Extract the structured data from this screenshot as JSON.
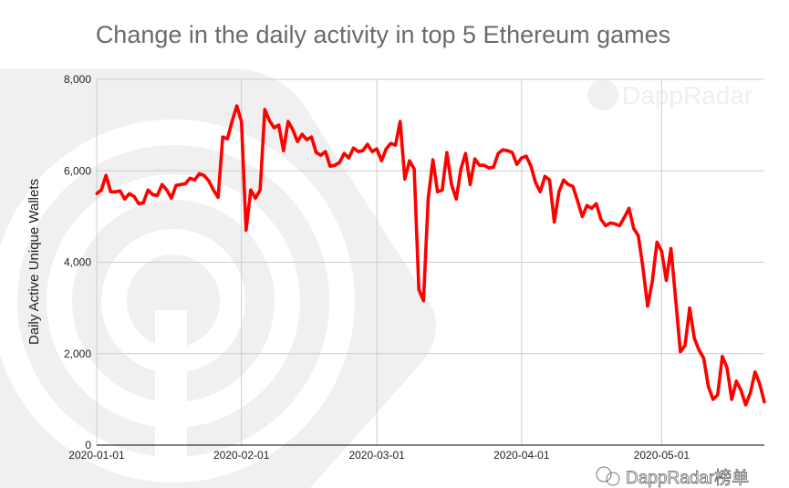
{
  "chart_data": {
    "type": "line",
    "title": "Change in the daily activity in top 5 Ethereum games",
    "xlabel": "",
    "ylabel": "Daily Active Unique Wallets",
    "ylim": [
      0,
      8000
    ],
    "yticks": [
      0,
      2000,
      4000,
      6000,
      8000
    ],
    "ytick_labels": [
      "0",
      "2,000",
      "4,000",
      "6,000",
      "8,000"
    ],
    "xticks": [
      "2020-01-01",
      "2020-02-01",
      "2020-03-01",
      "2020-04-01",
      "2020-05-01"
    ],
    "xlim": [
      "2020-01-01",
      "2020-05-23"
    ],
    "grid": true,
    "legend": "none",
    "line_color": "#ff0000",
    "x": [
      "2020-01-01",
      "2020-01-02",
      "2020-01-03",
      "2020-01-04",
      "2020-01-05",
      "2020-01-06",
      "2020-01-07",
      "2020-01-08",
      "2020-01-09",
      "2020-01-10",
      "2020-01-11",
      "2020-01-12",
      "2020-01-13",
      "2020-01-14",
      "2020-01-15",
      "2020-01-16",
      "2020-01-17",
      "2020-01-18",
      "2020-01-19",
      "2020-01-20",
      "2020-01-21",
      "2020-01-22",
      "2020-01-23",
      "2020-01-24",
      "2020-01-25",
      "2020-01-26",
      "2020-01-27",
      "2020-01-28",
      "2020-01-29",
      "2020-01-30",
      "2020-01-31",
      "2020-02-01",
      "2020-02-02",
      "2020-02-03",
      "2020-02-04",
      "2020-02-05",
      "2020-02-06",
      "2020-02-07",
      "2020-02-08",
      "2020-02-09",
      "2020-02-10",
      "2020-02-11",
      "2020-02-12",
      "2020-02-13",
      "2020-02-14",
      "2020-02-15",
      "2020-02-16",
      "2020-02-17",
      "2020-02-18",
      "2020-02-19",
      "2020-02-20",
      "2020-02-21",
      "2020-02-22",
      "2020-02-23",
      "2020-02-24",
      "2020-02-25",
      "2020-02-26",
      "2020-02-27",
      "2020-02-28",
      "2020-02-29",
      "2020-03-01",
      "2020-03-02",
      "2020-03-03",
      "2020-03-04",
      "2020-03-05",
      "2020-03-06",
      "2020-03-07",
      "2020-03-08",
      "2020-03-09",
      "2020-03-10",
      "2020-03-11",
      "2020-03-12",
      "2020-03-13",
      "2020-03-14",
      "2020-03-15",
      "2020-03-16",
      "2020-03-17",
      "2020-03-18",
      "2020-03-19",
      "2020-03-20",
      "2020-03-21",
      "2020-03-22",
      "2020-03-23",
      "2020-03-24",
      "2020-03-25",
      "2020-03-26",
      "2020-03-27",
      "2020-03-28",
      "2020-03-29",
      "2020-03-30",
      "2020-03-31",
      "2020-04-01",
      "2020-04-02",
      "2020-04-03",
      "2020-04-04",
      "2020-04-05",
      "2020-04-06",
      "2020-04-07",
      "2020-04-08",
      "2020-04-09",
      "2020-04-10",
      "2020-04-11",
      "2020-04-12",
      "2020-04-13",
      "2020-04-14",
      "2020-04-15",
      "2020-04-16",
      "2020-04-17",
      "2020-04-18",
      "2020-04-19",
      "2020-04-20",
      "2020-04-21",
      "2020-04-22",
      "2020-04-23",
      "2020-04-24",
      "2020-04-25",
      "2020-04-26",
      "2020-04-27",
      "2020-04-28",
      "2020-04-29",
      "2020-04-30",
      "2020-05-01",
      "2020-05-02",
      "2020-05-03",
      "2020-05-04",
      "2020-05-05",
      "2020-05-06",
      "2020-05-07",
      "2020-05-08",
      "2020-05-09",
      "2020-05-10",
      "2020-05-11",
      "2020-05-12",
      "2020-05-13",
      "2020-05-14",
      "2020-05-15",
      "2020-05-16",
      "2020-05-17",
      "2020-05-18",
      "2020-05-19",
      "2020-05-20",
      "2020-05-21",
      "2020-05-22",
      "2020-05-23"
    ],
    "values": [
      5500,
      5580,
      5900,
      5540,
      5540,
      5560,
      5380,
      5500,
      5440,
      5280,
      5300,
      5580,
      5480,
      5460,
      5700,
      5580,
      5400,
      5680,
      5700,
      5720,
      5840,
      5800,
      5940,
      5900,
      5780,
      5580,
      5420,
      6740,
      6700,
      7080,
      7420,
      7080,
      4700,
      5580,
      5400,
      5580,
      7340,
      7100,
      6940,
      7000,
      6440,
      7080,
      6900,
      6640,
      6800,
      6680,
      6740,
      6400,
      6340,
      6420,
      6100,
      6120,
      6180,
      6380,
      6280,
      6500,
      6420,
      6440,
      6580,
      6420,
      6480,
      6220,
      6480,
      6600,
      6560,
      7080,
      5820,
      6220,
      6040,
      3400,
      3160,
      5380,
      6240,
      5540,
      5580,
      6400,
      5700,
      5380,
      6040,
      6380,
      5700,
      6260,
      6120,
      6120,
      6060,
      6080,
      6380,
      6460,
      6440,
      6400,
      6140,
      6280,
      6320,
      6100,
      5740,
      5540,
      5880,
      5800,
      4880,
      5540,
      5800,
      5700,
      5660,
      5340,
      5000,
      5240,
      5180,
      5280,
      4940,
      4800,
      4860,
      4840,
      4800,
      4980,
      5180,
      4740,
      4580,
      3880,
      3040,
      3580,
      4440,
      4240,
      3600,
      4300,
      3200,
      2040,
      2180,
      3000,
      2340,
      2080,
      1900,
      1280,
      1000,
      1100,
      1940,
      1700,
      1000,
      1400,
      1200,
      880,
      1140,
      1600,
      1340,
      940
    ]
  },
  "watermarks": {
    "top": "DappRadar",
    "bottom": "DappRadar榜单"
  }
}
